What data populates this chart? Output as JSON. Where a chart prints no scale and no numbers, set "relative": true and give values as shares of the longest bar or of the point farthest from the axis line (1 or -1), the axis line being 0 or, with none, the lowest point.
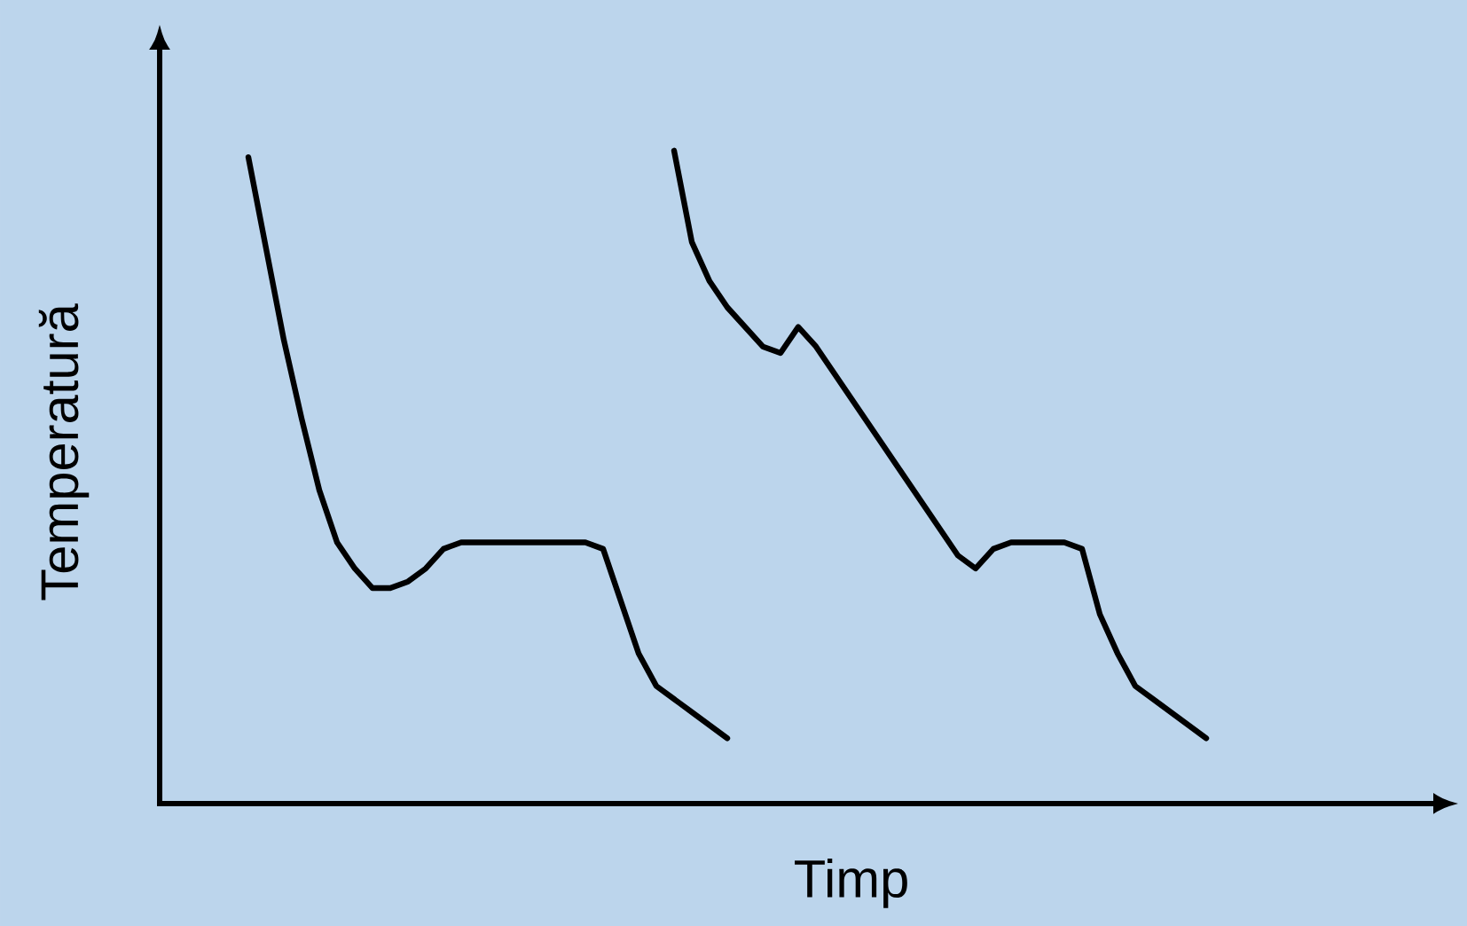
{
  "chart_data": {
    "type": "line",
    "relative": true,
    "xlabel": "Timp",
    "ylabel": "Temperatură",
    "marker": "none",
    "categories": [
      null,
      null,
      null,
      null,
      null,
      null,
      null,
      null,
      null,
      null,
      null,
      null,
      null,
      null,
      null,
      null,
      null,
      null,
      null,
      null,
      null,
      null,
      null,
      null,
      null,
      null,
      null,
      null,
      null,
      null,
      null,
      null,
      null,
      null,
      null,
      null,
      null,
      null,
      null,
      null,
      null,
      null,
      null,
      null,
      null,
      null,
      null,
      null,
      null,
      null,
      null,
      null,
      null,
      null,
      null
    ],
    "series": [
      {
        "color": "#000000",
        "values": [
          0.99,
          0.85,
          0.71,
          0.59,
          0.48,
          0.4,
          0.36,
          0.33,
          0.33,
          0.34,
          0.36,
          0.39,
          0.4,
          0.4,
          0.4,
          0.4,
          0.4,
          0.4,
          0.4,
          0.4,
          0.39,
          0.31,
          0.23,
          0.18,
          0.16,
          0.14,
          0.12,
          0.1,
          null,
          null,
          null,
          null,
          null,
          null,
          null,
          null,
          null,
          null,
          null,
          null,
          null,
          null,
          null,
          null,
          null,
          null,
          null,
          null,
          null,
          null,
          null,
          null,
          null,
          null,
          null
        ]
      },
      {
        "color": "#000000",
        "values": [
          null,
          null,
          null,
          null,
          null,
          null,
          null,
          null,
          null,
          null,
          null,
          null,
          null,
          null,
          null,
          null,
          null,
          null,
          null,
          null,
          null,
          null,
          null,
          null,
          1.0,
          0.86,
          0.8,
          0.76,
          0.73,
          0.7,
          0.69,
          0.73,
          0.7,
          0.66,
          0.62,
          0.58,
          0.54,
          0.5,
          0.46,
          0.42,
          0.38,
          0.36,
          0.39,
          0.4,
          0.4,
          0.4,
          0.4,
          0.39,
          0.29,
          0.23,
          0.18,
          0.16,
          0.14,
          0.12,
          0.1
        ]
      }
    ]
  }
}
